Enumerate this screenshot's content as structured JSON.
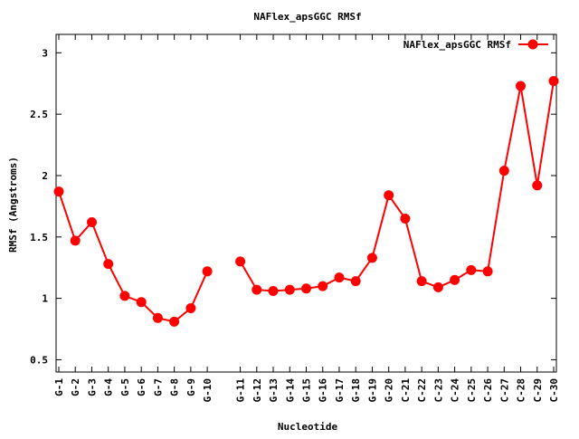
{
  "chart_data": {
    "type": "line",
    "title": "NAFlex_apsGGC RMSf",
    "xlabel": "Nucleotide",
    "ylabel": "RMSf (Angstroms)",
    "ylim": [
      0.4,
      3.15
    ],
    "yticks": [
      "0.5",
      "1",
      "1.5",
      "2",
      "2.5",
      "3"
    ],
    "grid": false,
    "legend": "top-right",
    "categories": [
      "G-1",
      "G-2",
      "G-3",
      "G-4",
      "G-5",
      "G-6",
      "G-7",
      "G-8",
      "G-9",
      "G-10",
      "",
      "G-11",
      "G-12",
      "G-13",
      "G-14",
      "G-15",
      "G-16",
      "G-17",
      "G-18",
      "G-19",
      "G-20",
      "C-21",
      "C-22",
      "C-23",
      "C-24",
      "C-25",
      "C-26",
      "C-27",
      "C-28",
      "C-29",
      "C-30"
    ],
    "series": [
      {
        "name": "NAFlex_apsGGC RMSf",
        "color": "#ff0000",
        "values": [
          1.87,
          1.47,
          1.62,
          1.28,
          1.02,
          0.97,
          0.84,
          0.81,
          0.92,
          1.22,
          null,
          1.3,
          1.07,
          1.06,
          1.07,
          1.08,
          1.1,
          1.17,
          1.14,
          1.33,
          1.84,
          1.65,
          1.14,
          1.09,
          1.15,
          1.23,
          1.22,
          2.04,
          2.73,
          1.92,
          2.77
        ]
      }
    ]
  }
}
